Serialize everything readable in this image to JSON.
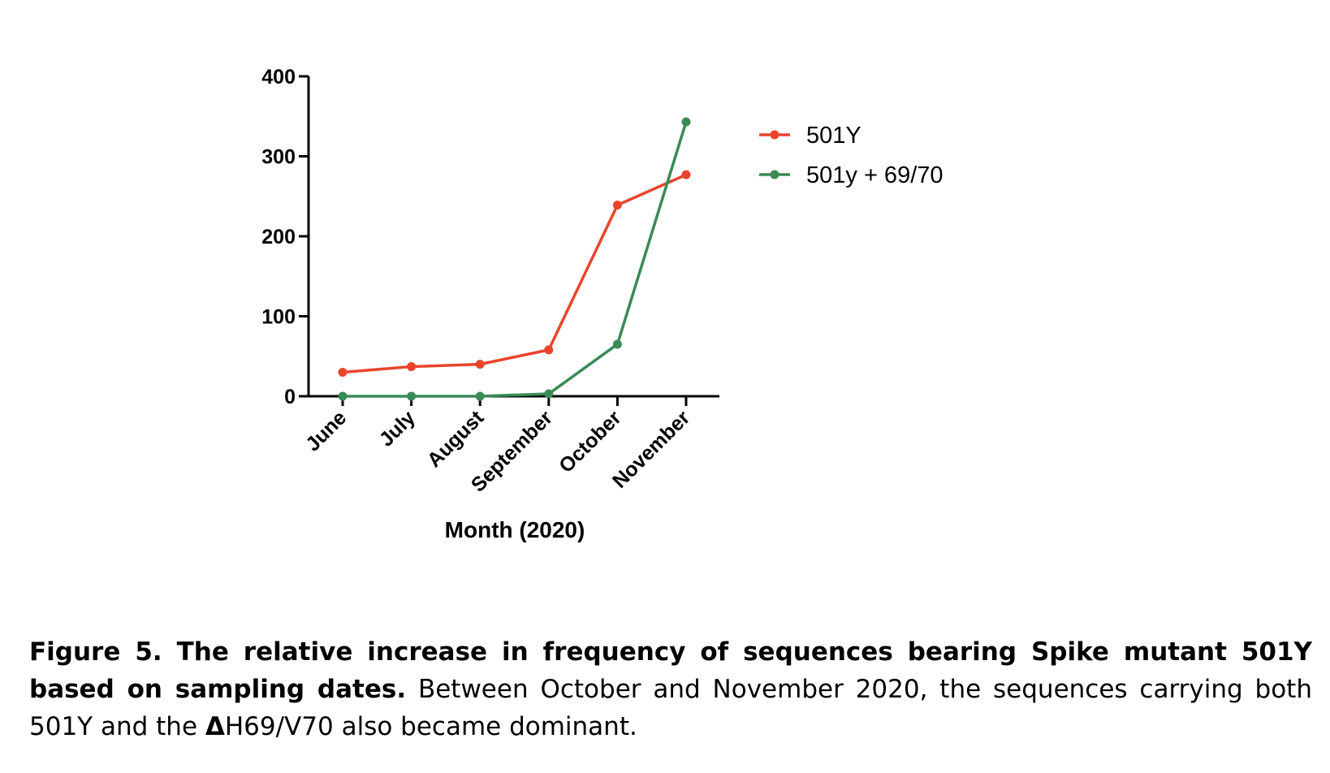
{
  "chart_data": {
    "type": "line",
    "title": "",
    "xlabel": "Month (2020)",
    "ylabel": "",
    "categories": [
      "June",
      "July",
      "August",
      "September",
      "October",
      "November"
    ],
    "ylim": [
      0,
      400
    ],
    "yticks": [
      0,
      100,
      200,
      300,
      400
    ],
    "grid": false,
    "legend_position": "top-right",
    "series": [
      {
        "name": "501Y",
        "color": "#e8452b",
        "values": [
          30,
          37,
          40,
          58,
          239,
          277
        ]
      },
      {
        "name": "501y + 69/70",
        "color": "#3a8a57",
        "values": [
          0,
          0,
          0,
          3,
          65,
          343
        ]
      }
    ]
  },
  "caption": {
    "bold": "Figure 5. The relative increase in frequency of sequences bearing Spike mutant 501Y based on sampling dates.",
    "text": " Between October and November 2020, the sequences carrying both 501Y and the ",
    "delta_symbol": "Δ",
    "tail": "H69/V70 also became dominant."
  }
}
